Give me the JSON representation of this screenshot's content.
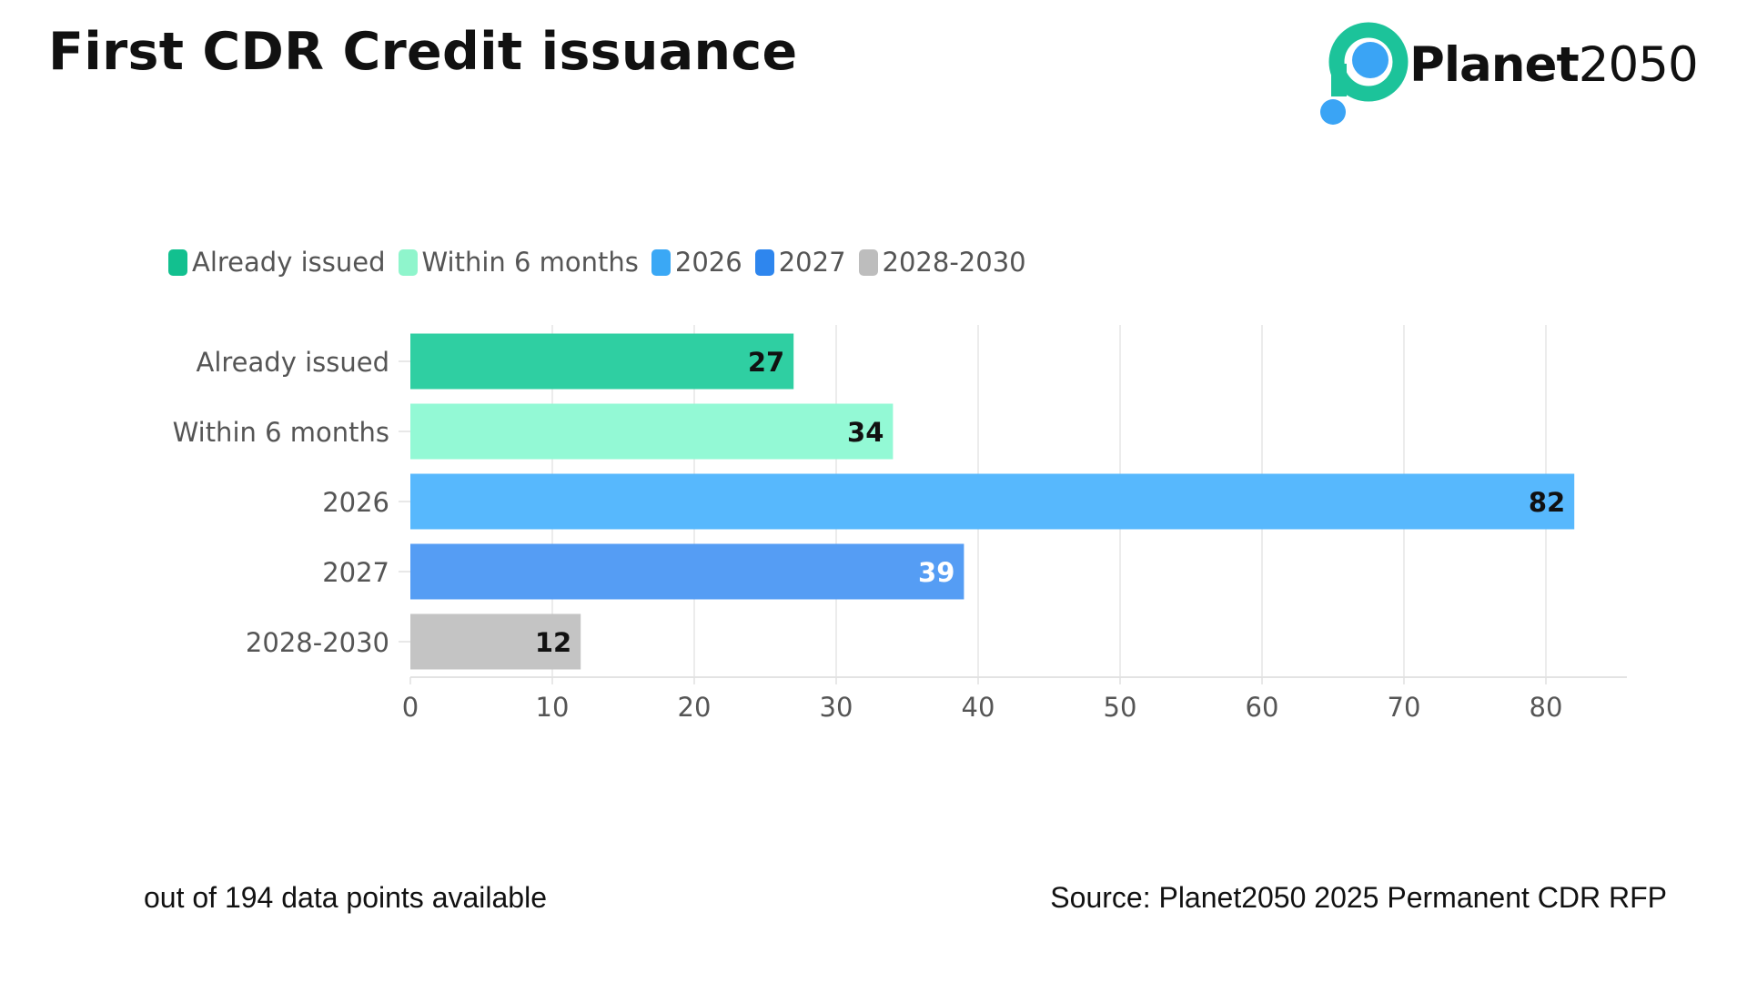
{
  "title": "First CDR Credit issuance",
  "logo": {
    "brand_bold": "Planet",
    "brand_light": "2050",
    "ring_color": "#1cc39a",
    "dot_color": "#3aa4f5"
  },
  "footnote": "out of 194 data points available",
  "source": "Source: Planet2050 2025 Permanent CDR RFP",
  "chart_data": {
    "type": "bar",
    "orientation": "horizontal",
    "categories": [
      "Already issued",
      "Within 6 months",
      "2026",
      "2027",
      "2028-2030"
    ],
    "values": [
      27,
      34,
      82,
      39,
      12
    ],
    "colors": [
      "#2fcfa2",
      "#93f9d5",
      "#57b8fd",
      "#559df4",
      "#c4c4c4"
    ],
    "value_label_colors": [
      "#111111",
      "#111111",
      "#111111",
      "#ffffff",
      "#111111"
    ],
    "legend": {
      "placement": "top-left",
      "entries": [
        {
          "label": "Already issued",
          "color": "#12c08f"
        },
        {
          "label": "Within 6 months",
          "color": "#8ff5cc"
        },
        {
          "label": "2026",
          "color": "#3aa8f5"
        },
        {
          "label": "2027",
          "color": "#2e86ee"
        },
        {
          "label": "2028-2030",
          "color": "#bdbdbd"
        }
      ]
    },
    "xlim": [
      0,
      85
    ],
    "xticks": [
      0,
      10,
      20,
      30,
      40,
      50,
      60,
      70,
      80
    ],
    "grid": "vertical",
    "title": "",
    "xlabel": "",
    "ylabel": ""
  }
}
